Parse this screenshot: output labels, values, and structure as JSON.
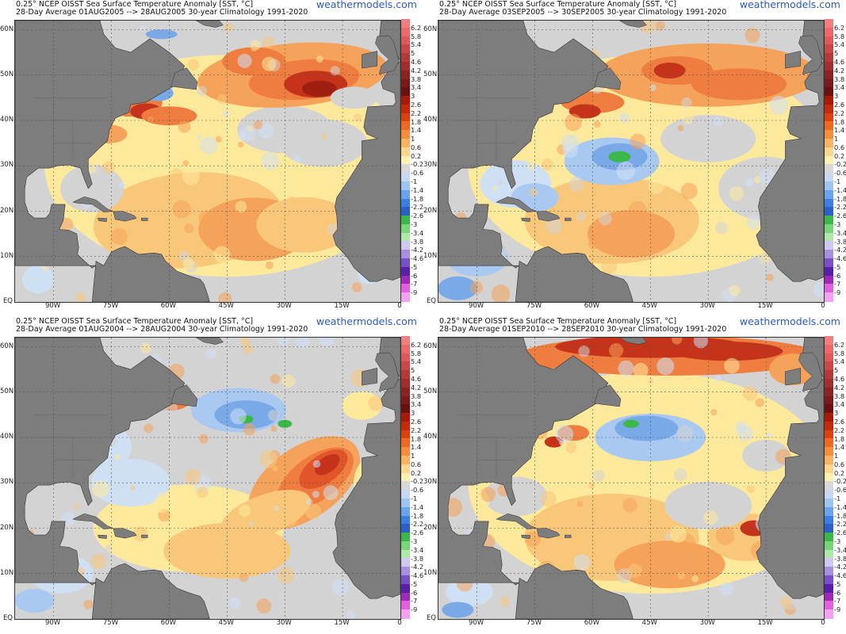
{
  "panels": [
    {
      "line1": "0.25° NCEP OISST Sea Surface Temperature Anomaly [SST, °C]",
      "line2": "28-Day Average 01AUG2005 --> 28AUG2005   30-year Climatology 1991-2020",
      "brand": "weathermodels.com"
    },
    {
      "line1": "0.25° NCEP OISST Sea Surface Temperature Anomaly [SST, °C]",
      "line2": "28-Day Average 03SEP2005 --> 30SEP2005   30-year Climatology 1991-2020",
      "brand": "weathermodels.com"
    },
    {
      "line1": "0.25° NCEP OISST Sea Surface Temperature Anomaly [SST, °C]",
      "line2": "28-Day Average 01AUG2004 --> 28AUG2004   30-year Climatology 1991-2020",
      "brand": "weathermodels.com"
    },
    {
      "line1": "0.25° NCEP OISST Sea Surface Temperature Anomaly [SST, °C]",
      "line2": "28-Day Average 01SEP2010 --> 28SEP2010   30-year Climatology 1991-2020",
      "brand": "weathermodels.com"
    }
  ],
  "lat_labels": [
    "60N",
    "50N",
    "40N",
    "30N",
    "20N",
    "10N",
    "EQ"
  ],
  "lon_labels": [
    "90W",
    "75W",
    "60W",
    "45W",
    "30W",
    "15W",
    "0"
  ],
  "colorbar": {
    "labels": [
      "6.2",
      "5.8",
      "5.4",
      "5",
      "4.6",
      "4.2",
      "3.8",
      "3.4",
      "3",
      "2.6",
      "2.2",
      "1.8",
      "1.4",
      "1",
      "0.6",
      "0.2",
      "-0.2",
      "-0.6",
      "-1",
      "-1.4",
      "-1.8",
      "-2.2",
      "-2.6",
      "-3",
      "-3.4",
      "-3.8",
      "-4.2",
      "-4.6",
      "-5",
      "-6",
      "-7",
      "-9"
    ],
    "colors": [
      "#f08080",
      "#e86a6a",
      "#dc5a5a",
      "#c84848",
      "#b43a3a",
      "#a02e2e",
      "#8a2424",
      "#7a1a1a",
      "#6b1010",
      "#a81a08",
      "#c42a0c",
      "#dc4210",
      "#ee6a22",
      "#f58e3c",
      "#f9b263",
      "#fdd790",
      "#fff2b0",
      "#d8d8d8",
      "#c8d8f0",
      "#9ec4f0",
      "#6aa4ec",
      "#3c7fe0",
      "#2a60c8",
      "#3cb84a",
      "#7ad47a",
      "#b0e8a8",
      "#d0c8f0",
      "#a890e0",
      "#7a50c8",
      "#5a1ea8",
      "#a02ab8",
      "#e060e0",
      "#f4a0f4"
    ]
  }
}
